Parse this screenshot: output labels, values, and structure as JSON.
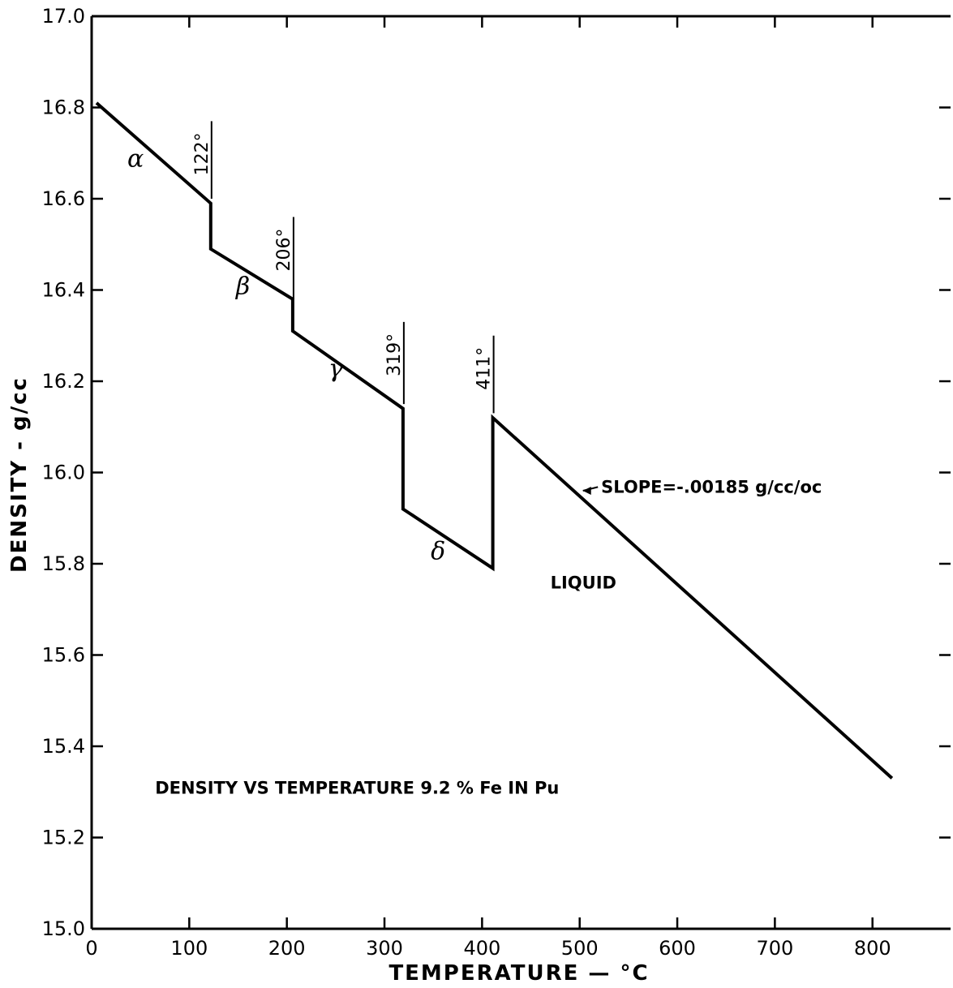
{
  "chart_data": {
    "type": "line",
    "xlabel": "TEMPERATURE — °C",
    "ylabel": "DENSITY - g/cc",
    "xlim": [
      0,
      880
    ],
    "ylim": [
      15.0,
      17.0
    ],
    "x_ticks": [
      0,
      100,
      200,
      300,
      400,
      500,
      600,
      700,
      800
    ],
    "x_tick_labels": [
      "0",
      "100",
      "200",
      "300",
      "400",
      "500",
      "600",
      "700",
      "800"
    ],
    "y_ticks": [
      15.0,
      15.2,
      15.4,
      15.6,
      15.8,
      16.0,
      16.2,
      16.4,
      16.6,
      16.8,
      17.0
    ],
    "y_tick_labels": [
      "15.0",
      "15.2",
      "15.4",
      "15.6",
      "15.8",
      "16.0",
      "16.2",
      "16.4",
      "16.6",
      "16.8",
      "17.0"
    ],
    "series": [
      {
        "x": [
          5,
          122,
          122,
          206,
          206,
          319,
          319,
          411,
          411,
          820
        ],
        "y": [
          16.81,
          16.59,
          16.49,
          16.38,
          16.31,
          16.14,
          15.92,
          15.79,
          16.12,
          15.33
        ]
      }
    ],
    "transitions": [
      {
        "x": 122,
        "label": "122°",
        "y_top": 16.77,
        "y_bottom": 16.6
      },
      {
        "x": 206,
        "label": "206°",
        "y_top": 16.56,
        "y_bottom": 16.38
      },
      {
        "x": 319,
        "label": "319°",
        "y_top": 16.33,
        "y_bottom": 16.15
      },
      {
        "x": 411,
        "label": "411°",
        "y_top": 16.3,
        "y_bottom": 16.13
      }
    ],
    "phase_labels": [
      {
        "text": "α",
        "x": 45,
        "y": 16.67
      },
      {
        "text": "β",
        "x": 155,
        "y": 16.39
      },
      {
        "text": "γ",
        "x": 250,
        "y": 16.21
      },
      {
        "text": "δ",
        "x": 355,
        "y": 15.81
      }
    ],
    "annotations": [
      {
        "text": "SLOPE=-.00185 g/cc/oc",
        "x": 522,
        "y": 15.97,
        "arrow_to_x": 500,
        "arrow_to_y": 15.96
      },
      {
        "text": "LIQUID",
        "x": 470,
        "y": 15.76
      },
      {
        "text": "DENSITY VS TEMPERATURE  9.2 % Fe IN Pu",
        "x": 65,
        "y": 15.31
      }
    ]
  }
}
